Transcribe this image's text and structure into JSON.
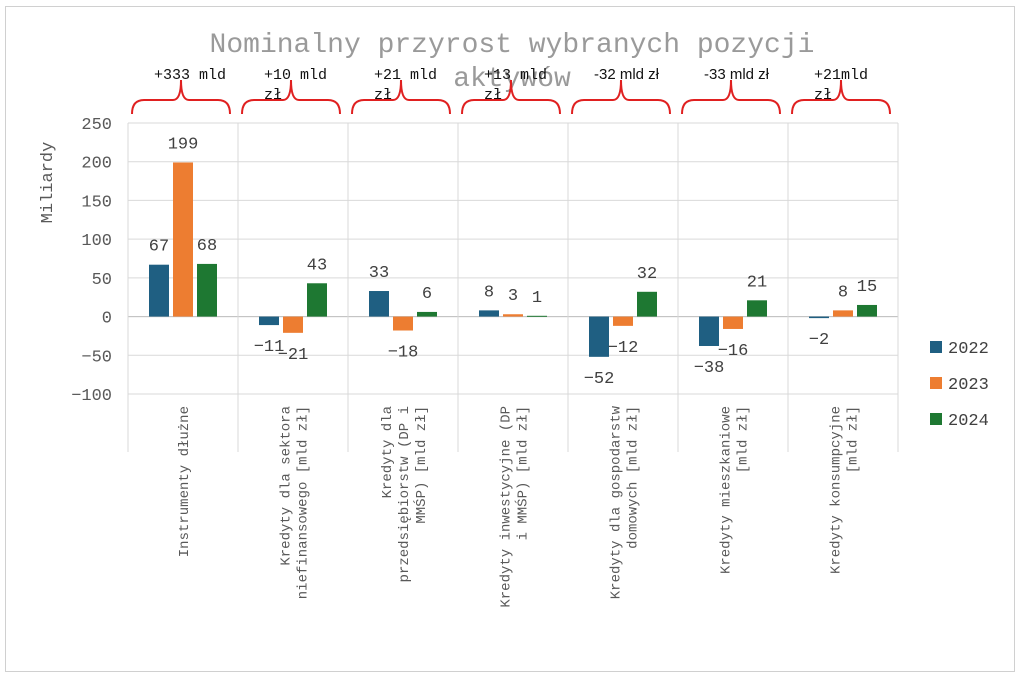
{
  "chart_data": {
    "type": "bar",
    "title_line1": "Nominalny przyrost wybranych pozycji",
    "title_line2": "aktywów",
    "ylabel": "Miliardy",
    "xlabel": "",
    "ylim": [
      -100,
      250
    ],
    "yticks": [
      250,
      200,
      150,
      100,
      50,
      0,
      -50,
      -100
    ],
    "ytick_labels": [
      "250",
      "200",
      "150",
      "100",
      "50",
      "0",
      "−50",
      "−100"
    ],
    "grid": true,
    "legend_position": "right",
    "categories": [
      [
        "Instrumenty dłużne"
      ],
      [
        "Kredyty dla sektora",
        "niefinansowego [mld zł]"
      ],
      [
        "Kredyty dla",
        "przedsiębiorstw (DP i",
        "MMŚP) [mld zł]"
      ],
      [
        "Kredyty inwestycyjne (DP",
        "i MMŚP) [mld zł]"
      ],
      [
        "Kredyty dla gospodarstw",
        "domowych [mld zł]"
      ],
      [
        "Kredyty mieszkaniowe",
        "[mld zł]"
      ],
      [
        "Kredyty konsumpcyjne",
        "[mld zł]"
      ]
    ],
    "series": [
      {
        "name": "2022",
        "color": "#1f5f82",
        "values": [
          67,
          -11,
          33,
          8,
          -52,
          -38,
          -2
        ],
        "labels": [
          "67",
          "−11",
          "33",
          "8",
          "−52",
          "−38",
          "−2"
        ]
      },
      {
        "name": "2023",
        "color": "#ed7d31",
        "values": [
          199,
          -21,
          -18,
          3,
          -12,
          -16,
          8
        ],
        "labels": [
          "199",
          "−21",
          "−18",
          "3",
          "−12",
          "−16",
          "8"
        ]
      },
      {
        "name": "2024",
        "color": "#1e7832",
        "values": [
          68,
          43,
          6,
          1,
          32,
          21,
          15
        ],
        "labels": [
          "68",
          "43",
          "6",
          "1",
          "32",
          "21",
          "15"
        ]
      }
    ],
    "brace_color": "#e02020",
    "annotations": [
      [
        "+333 mld"
      ],
      [
        "+10 mld",
        "zł"
      ],
      [
        "+21 mld",
        "zł"
      ],
      [
        "+13 mld",
        "zł"
      ],
      [
        "-32 mld zł"
      ],
      [
        "-33 mld zł"
      ],
      [
        "+21mld",
        "zł"
      ]
    ]
  }
}
